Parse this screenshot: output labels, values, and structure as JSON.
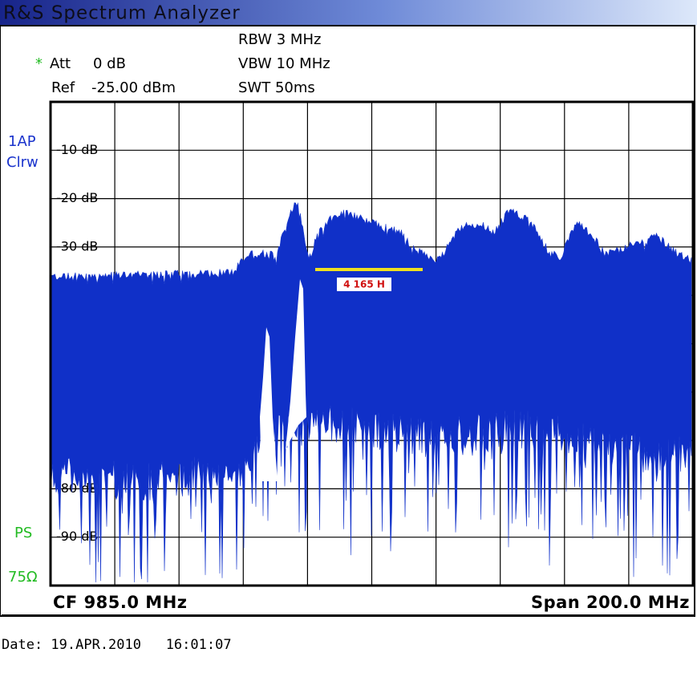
{
  "header": {
    "title": "R&S Spectrum Analyzer"
  },
  "settings": {
    "att_flag": "*",
    "att_label": "Att",
    "att_value": "0 dB",
    "ref_label": "Ref",
    "ref_value": "-25.00 dBm",
    "rbw": "RBW 3 MHz",
    "vbw": "VBW 10 MHz",
    "swt": "SWT 50ms"
  },
  "side_labels": {
    "trace": "1AP",
    "mode": "Clrw",
    "ps": "PS",
    "impedance": "75Ω"
  },
  "level_labels": [
    "-10 dB",
    "-20 dB",
    "-30 dB",
    "-80 dB",
    "-90 dB"
  ],
  "marker": {
    "label": "4 165 H"
  },
  "footer": {
    "center_freq": "CF 985.0 MHz",
    "span": "Span 200.0 MHz",
    "date": "Date: 19.APR.2010   16:01:07"
  }
}
